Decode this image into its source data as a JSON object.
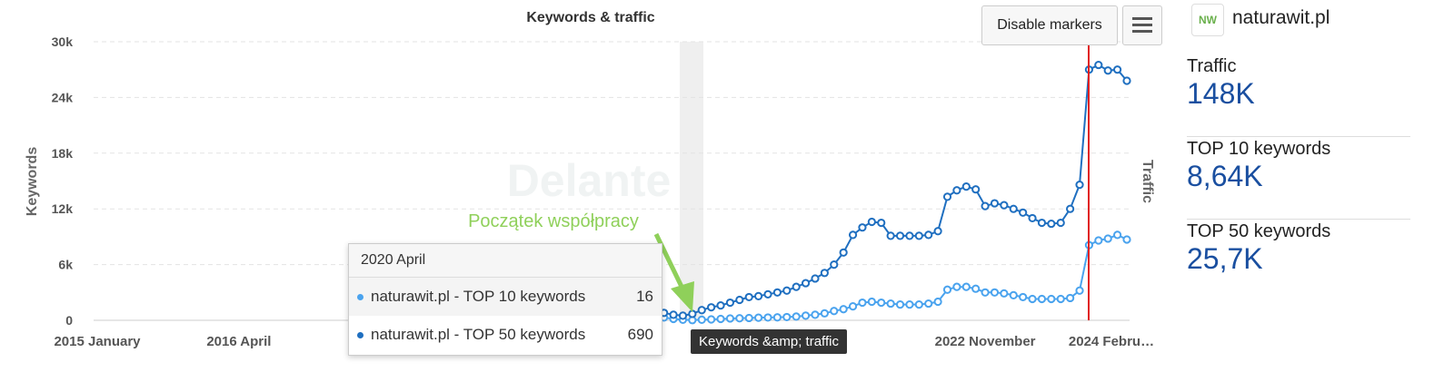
{
  "chart_data": {
    "type": "line",
    "title": "Keywords & traffic",
    "y_label": "Keywords",
    "y2_label": "Traffic",
    "watermark": "Delante",
    "annotation": "Początek współpracy",
    "categories": [
      "2015 January",
      null,
      null,
      null,
      null,
      null,
      null,
      null,
      null,
      null,
      null,
      null,
      null,
      null,
      null,
      "2016 April",
      null,
      null,
      null,
      null,
      null,
      null,
      null,
      null,
      null,
      null,
      null,
      null,
      null,
      null,
      null,
      null,
      null,
      null,
      null,
      null,
      null,
      null,
      null,
      null,
      null,
      null,
      null,
      null,
      null,
      null,
      null,
      null,
      null,
      null,
      null,
      null,
      null,
      null,
      null,
      null,
      null,
      null,
      null,
      null,
      null,
      null,
      null,
      null,
      null,
      null,
      null,
      null,
      null,
      null,
      null,
      null,
      null,
      null,
      null,
      null,
      null,
      null,
      null,
      null,
      null,
      null,
      null,
      null,
      null,
      null,
      null,
      null,
      null,
      null,
      null,
      null,
      null,
      null,
      "2022 November",
      null,
      null,
      null,
      null,
      null,
      null,
      null,
      null,
      null,
      null,
      null,
      null,
      null,
      null,
      "2024 Febru…"
    ],
    "series": [
      {
        "name": "naturawit.pl - TOP 10 keywords",
        "color": "#4aa3ee",
        "values": [
          null,
          null,
          null,
          null,
          null,
          null,
          null,
          null,
          null,
          null,
          null,
          null,
          null,
          null,
          null,
          null,
          null,
          null,
          null,
          null,
          null,
          null,
          null,
          null,
          null,
          null,
          null,
          null,
          null,
          null,
          null,
          null,
          null,
          null,
          null,
          null,
          null,
          null,
          null,
          null,
          null,
          null,
          null,
          null,
          null,
          null,
          null,
          null,
          null,
          null,
          null,
          null,
          null,
          null,
          null,
          null,
          null,
          null,
          null,
          null,
          300,
          150,
          60,
          16,
          60,
          100,
          150,
          200,
          220,
          250,
          280,
          300,
          320,
          350,
          400,
          500,
          600,
          750,
          1000,
          1200,
          1500,
          1900,
          2000,
          1900,
          1800,
          1700,
          1700,
          1700,
          1800,
          2000,
          3300,
          3600,
          3600,
          3400,
          3000,
          3000,
          2900,
          2700,
          2500,
          2300,
          2300,
          2300,
          2300,
          2400,
          3200,
          8100,
          8600,
          8800,
          9200,
          8700
        ]
      },
      {
        "name": "naturawit.pl - TOP 50 keywords",
        "color": "#1f6fc0",
        "values": [
          null,
          null,
          null,
          null,
          null,
          null,
          null,
          null,
          null,
          null,
          null,
          null,
          null,
          null,
          null,
          null,
          null,
          null,
          null,
          null,
          null,
          null,
          null,
          null,
          null,
          null,
          null,
          null,
          null,
          null,
          null,
          null,
          null,
          null,
          null,
          null,
          null,
          null,
          null,
          null,
          null,
          null,
          null,
          null,
          null,
          null,
          null,
          null,
          null,
          null,
          null,
          null,
          null,
          null,
          null,
          null,
          null,
          null,
          null,
          null,
          800,
          600,
          500,
          690,
          1100,
          1400,
          1600,
          1900,
          2200,
          2500,
          2600,
          2800,
          3000,
          3200,
          3600,
          4000,
          4500,
          5100,
          6000,
          7300,
          9200,
          10000,
          10600,
          10500,
          9100,
          9100,
          9100,
          9100,
          9200,
          9600,
          13300,
          14000,
          14400,
          14100,
          12300,
          12600,
          12400,
          12000,
          11600,
          11000,
          10500,
          10400,
          10500,
          12000,
          14600,
          27000,
          27500,
          26900,
          27000,
          25800
        ]
      }
    ],
    "ylim": [
      0,
      30000
    ],
    "yticks": [
      0,
      {
        "value": 6000,
        "label": "6k"
      },
      {
        "value": 12000,
        "label": "12k"
      },
      {
        "value": 18000,
        "label": "18k"
      },
      {
        "value": 24000,
        "label": "24k"
      },
      {
        "value": 30000,
        "label": "30k"
      }
    ],
    "grid": true,
    "tooltip": {
      "title": "2020 April",
      "index": 63
    }
  },
  "buttons": {
    "markers": "Disable markers"
  },
  "hover_tooltip": "Keywords &amp; traffic",
  "sidebar": {
    "logo": "NW",
    "domain": "naturawit.pl",
    "stats": [
      {
        "label": "Traffic",
        "value": "148K"
      },
      {
        "label": "TOP 10 keywords",
        "value": "8,64K"
      },
      {
        "label": "TOP 50 keywords",
        "value": "25,7K"
      }
    ]
  }
}
